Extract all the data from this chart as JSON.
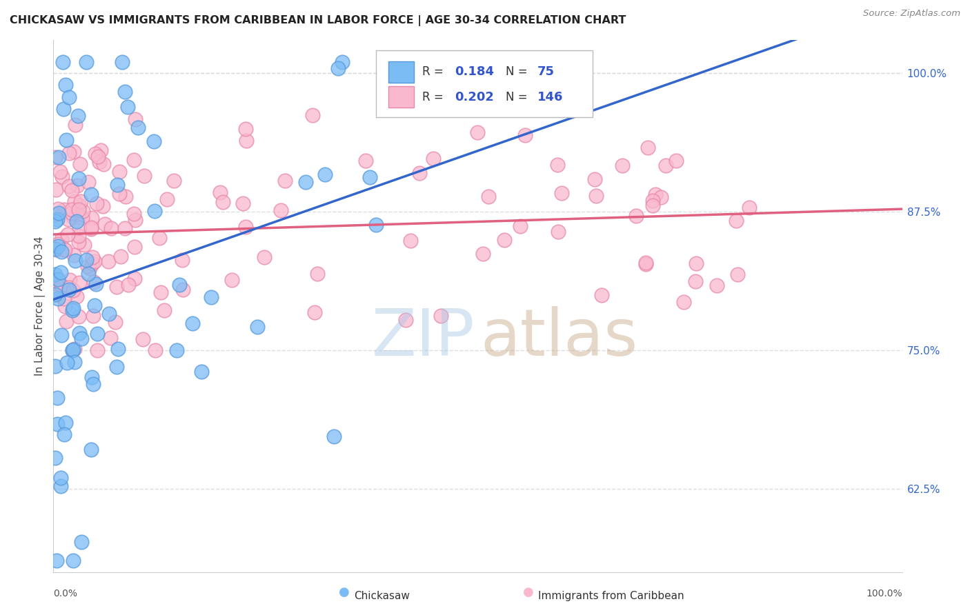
{
  "title": "CHICKASAW VS IMMIGRANTS FROM CARIBBEAN IN LABOR FORCE | AGE 30-34 CORRELATION CHART",
  "source": "Source: ZipAtlas.com",
  "ylabel": "In Labor Force | Age 30-34",
  "x_min": 0.0,
  "x_max": 100.0,
  "y_min": 55.0,
  "y_max": 103.0,
  "y_ticks": [
    62.5,
    75.0,
    87.5,
    100.0
  ],
  "chickasaw_color": "#7bbcf5",
  "chickasaw_edge": "#5599dd",
  "caribbean_color": "#f9b8ce",
  "caribbean_edge": "#e888aa",
  "chickasaw_R": 0.184,
  "chickasaw_N": 75,
  "caribbean_R": 0.202,
  "caribbean_N": 146,
  "legend_color": "#3355cc",
  "trend_blue": "#3366cc",
  "trend_pink": "#e06080",
  "watermark_zip_color": "#aac8e8",
  "watermark_atlas_color": "#c8aa88",
  "background_color": "#ffffff",
  "grid_color": "#dddddd"
}
